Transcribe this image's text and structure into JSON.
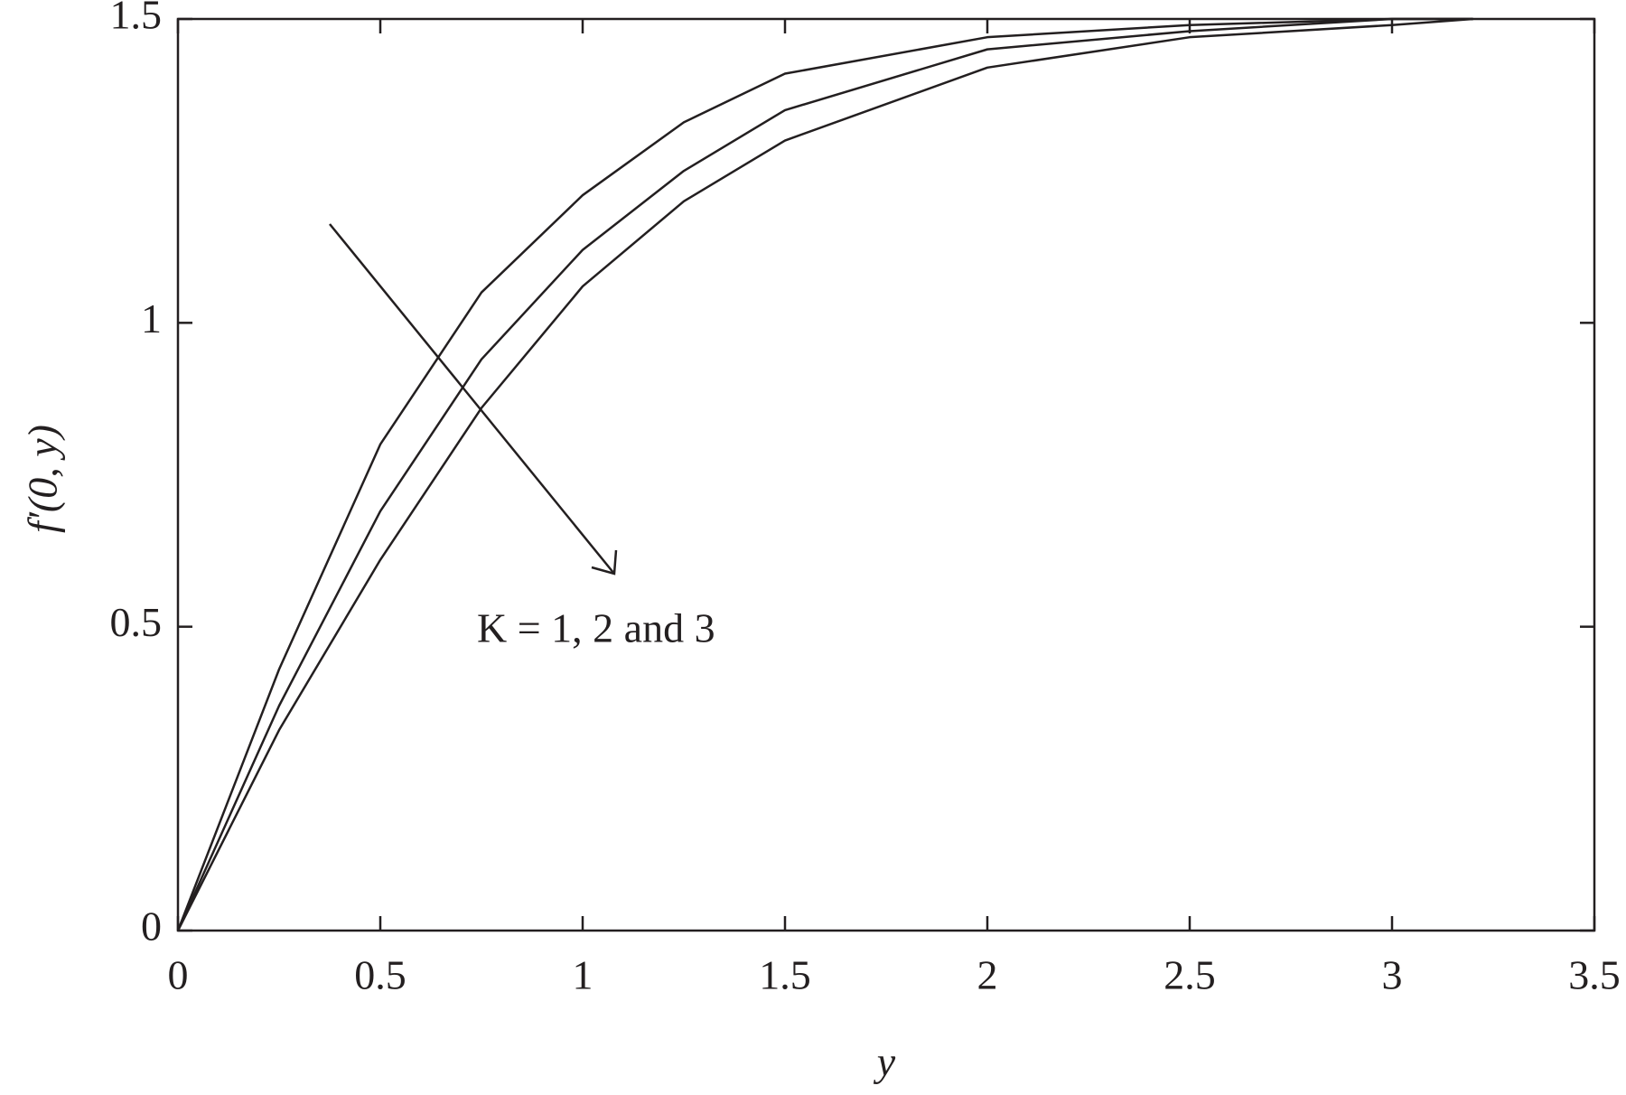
{
  "chart_data": {
    "type": "line",
    "x_label": "y",
    "y_label": "f′(0, y)",
    "annotation": "K = 1, 2 and 3",
    "x": [
      0,
      0.25,
      0.5,
      0.75,
      1,
      1.25,
      1.5,
      2,
      2.5,
      3,
      3.2
    ],
    "series": [
      {
        "color": "#231f20",
        "values": [
          0,
          0.43,
          0.8,
          1.05,
          1.21,
          1.33,
          1.41,
          1.47,
          1.49,
          1.5,
          1.5
        ]
      },
      {
        "color": "#231f20",
        "values": [
          0,
          0.37,
          0.69,
          0.94,
          1.12,
          1.25,
          1.35,
          1.45,
          1.48,
          1.5,
          1.5
        ]
      },
      {
        "color": "#231f20",
        "values": [
          0,
          0.33,
          0.61,
          0.86,
          1.06,
          1.2,
          1.3,
          1.42,
          1.47,
          1.49,
          1.5
        ]
      }
    ],
    "xlim": [
      0,
      3.5
    ],
    "xticks": [
      0,
      0.5,
      1,
      1.5,
      2,
      2.5,
      3,
      3.5
    ],
    "ylim": [
      0,
      1.5
    ],
    "yticks": [
      0,
      0.5,
      1,
      1.5
    ],
    "grid": false
  }
}
